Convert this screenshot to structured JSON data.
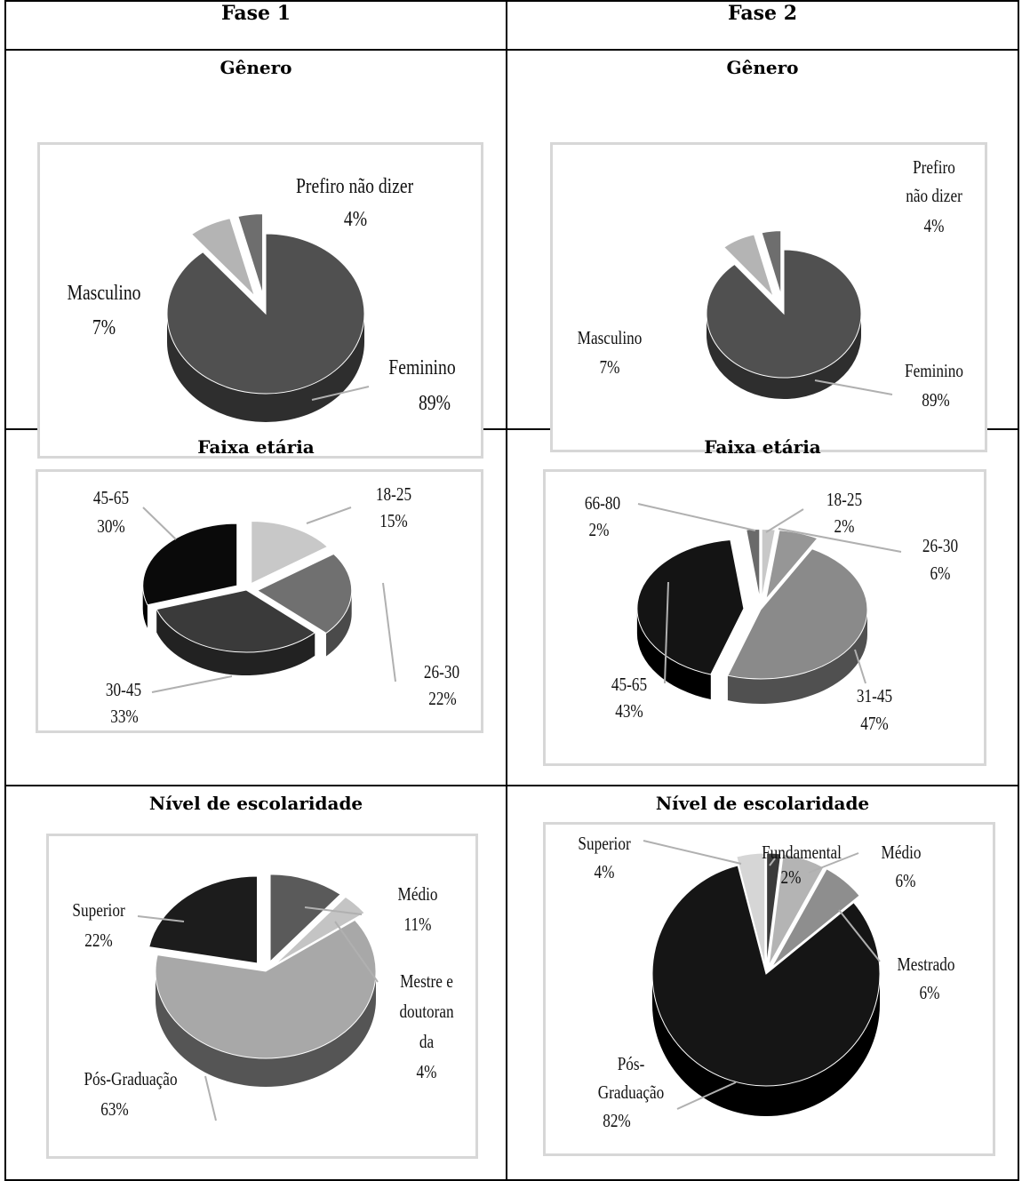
{
  "headers": [
    "Fase 1",
    "Fase 2"
  ],
  "chart_data": [
    {
      "id": "f1-genero",
      "type": "pie",
      "title": "Gênero",
      "slices": [
        {
          "label": "Feminino",
          "value": 89,
          "text": "89%"
        },
        {
          "label": "Masculino",
          "value": 7,
          "text": "7%"
        },
        {
          "label": "Prefiro não dizer",
          "value": 4,
          "text": "4%"
        }
      ]
    },
    {
      "id": "f2-genero",
      "type": "pie",
      "title": "Gênero",
      "slices": [
        {
          "label": "Feminino",
          "value": 89,
          "text": "89%"
        },
        {
          "label": "Masculino",
          "value": 7,
          "text": "7%"
        },
        {
          "label": "Prefiro não dizer",
          "value": 4,
          "text": "4%"
        }
      ]
    },
    {
      "id": "f1-idade",
      "type": "pie",
      "title": "Faixa etária",
      "slices": [
        {
          "label": "18-25",
          "value": 15,
          "text": "15%"
        },
        {
          "label": "26-30",
          "value": 22,
          "text": "22%"
        },
        {
          "label": "30-45",
          "value": 33,
          "text": "33%"
        },
        {
          "label": "45-65",
          "value": 30,
          "text": "30%"
        }
      ]
    },
    {
      "id": "f2-idade",
      "type": "pie",
      "title": "Faixa etária",
      "slices": [
        {
          "label": "18-25",
          "value": 2,
          "text": "2%"
        },
        {
          "label": "26-30",
          "value": 6,
          "text": "6%"
        },
        {
          "label": "31-45",
          "value": 47,
          "text": "47%"
        },
        {
          "label": "45-65",
          "value": 43,
          "text": "43%"
        },
        {
          "label": "66-80",
          "value": 2,
          "text": "2%"
        }
      ]
    },
    {
      "id": "f1-escolaridade",
      "type": "pie",
      "title": "Nível de escolaridade",
      "slices": [
        {
          "label": "Médio",
          "value": 11,
          "text": "11%"
        },
        {
          "label": "Mestre e doutoranda",
          "value": 4,
          "text": "4%"
        },
        {
          "label": "Pós-Graduação",
          "value": 63,
          "text": "63%"
        },
        {
          "label": "Superior",
          "value": 22,
          "text": "22%"
        }
      ]
    },
    {
      "id": "f2-escolaridade",
      "type": "pie",
      "title": "Nível de escolaridade",
      "slices": [
        {
          "label": "Fundamental",
          "value": 2,
          "text": "2%"
        },
        {
          "label": "Médio",
          "value": 6,
          "text": "6%"
        },
        {
          "label": "Mestrado",
          "value": 6,
          "text": "6%"
        },
        {
          "label": "Pós-Graduação",
          "value": 82,
          "text": "82%"
        },
        {
          "label": "Superior",
          "value": 4,
          "text": "4%"
        }
      ]
    }
  ],
  "labels": {
    "f1_genero": {
      "fem": "Feminino",
      "fem_v": "89%",
      "masc": "Masculino",
      "masc_v": "7%",
      "pref": "Prefiro não dizer",
      "pref_v": "4%"
    },
    "f2_genero": {
      "fem": "Feminino",
      "fem_v": "89%",
      "masc": "Masculino",
      "masc_v": "7%",
      "pref1": "Prefiro",
      "pref2": "não dizer",
      "pref_v": "4%"
    },
    "f1_idade": {
      "a": "18-25",
      "a_v": "15%",
      "b": "26-30",
      "b_v": "22%",
      "c": "30-45",
      "c_v": "33%",
      "d": "45-65",
      "d_v": "30%"
    },
    "f2_idade": {
      "a": "18-25",
      "a_v": "2%",
      "b": "26-30",
      "b_v": "6%",
      "c": "31-45",
      "c_v": "47%",
      "d": "45-65",
      "d_v": "43%",
      "e": "66-80",
      "e_v": "2%"
    },
    "f1_esc": {
      "medio": "Médio",
      "medio_v": "11%",
      "mestre1": "Mestre e",
      "mestre2": "doutoran",
      "mestre3": "da",
      "mestre_v": "4%",
      "pos": "Pós-Graduação",
      "pos_v": "63%",
      "sup": "Superior",
      "sup_v": "22%"
    },
    "f2_esc": {
      "fund": "Fundamental",
      "fund_v": "2%",
      "medio": "Médio",
      "medio_v": "6%",
      "mest": "Mestrado",
      "mest_v": "6%",
      "pos1": "Pós-",
      "pos2": "Graduação",
      "pos_v": "82%",
      "sup": "Superior",
      "sup_v": "4%"
    }
  }
}
